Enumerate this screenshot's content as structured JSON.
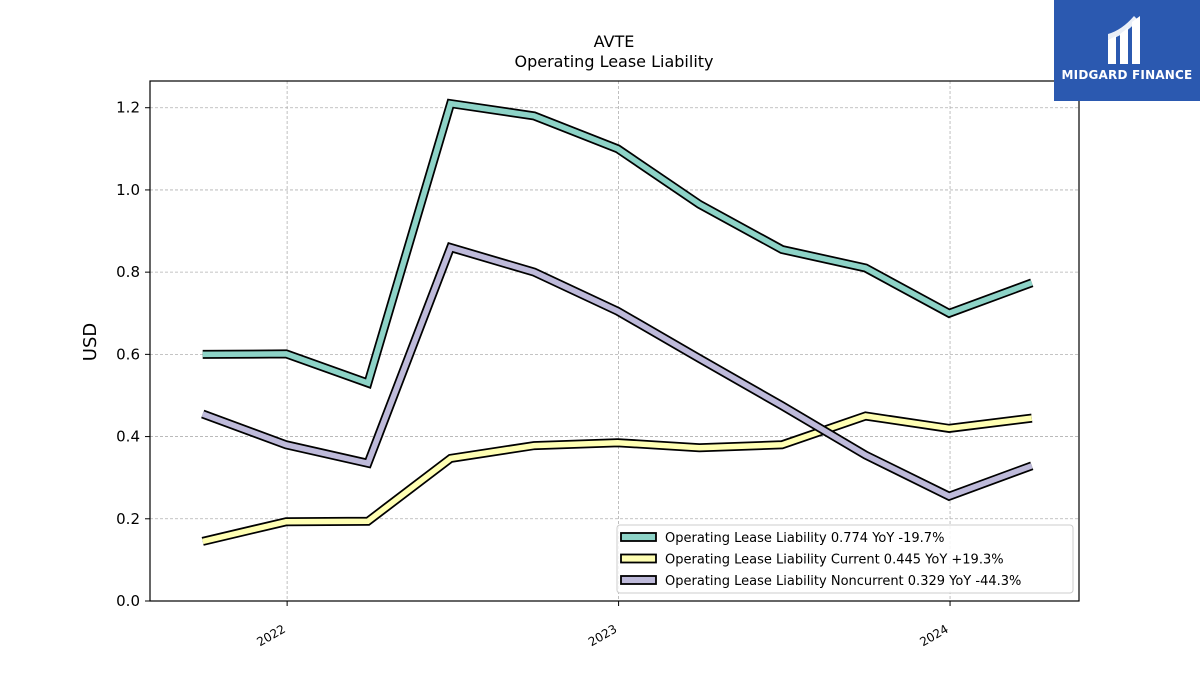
{
  "chart_data": {
    "type": "line",
    "title": "AVTE",
    "subtitle": "Operating Lease Liability",
    "ylabel": "USD",
    "xlabel": "",
    "ylim": [
      0,
      1.265
    ],
    "yticks": [
      "0.0",
      "0.2",
      "0.4",
      "0.6",
      "0.8",
      "1.0",
      "1.2"
    ],
    "xticks": [
      {
        "label": "2022",
        "date": "2022-01-01"
      },
      {
        "label": "2023",
        "date": "2023-01-01"
      },
      {
        "label": "2024",
        "date": "2024-01-01"
      }
    ],
    "xlim": [
      "2021-08-03",
      "2024-05-22"
    ],
    "x": [
      "2021-09-30",
      "2021-12-31",
      "2022-03-31",
      "2022-06-30",
      "2022-09-30",
      "2022-12-31",
      "2023-03-31",
      "2023-06-30",
      "2023-09-30",
      "2023-12-31",
      "2024-03-31"
    ],
    "grid": true,
    "legend_position": "lower-right",
    "series": [
      {
        "name": "Operating Lease Liability",
        "legend_value": "0.774 YoY -19.7%",
        "color": "#8dd3c7",
        "values": [
          0.6,
          0.601,
          0.53,
          1.21,
          1.18,
          1.1,
          0.965,
          0.855,
          0.81,
          0.7,
          0.774
        ]
      },
      {
        "name": "Operating Lease Liability Current",
        "legend_value": "0.445 YoY +19.3%",
        "color": "#ffffb3",
        "values": [
          0.145,
          0.193,
          0.194,
          0.347,
          0.378,
          0.385,
          0.373,
          0.38,
          0.45,
          0.42,
          0.445
        ]
      },
      {
        "name": "Operating Lease Liability Noncurrent",
        "legend_value": "0.329 YoY -44.3%",
        "color": "#bebada",
        "values": [
          0.455,
          0.38,
          0.335,
          0.86,
          0.8,
          0.705,
          0.59,
          0.475,
          0.355,
          0.255,
          0.329
        ]
      }
    ]
  },
  "logo": {
    "text": "MIDGARD FINANCE",
    "color": "#2b59b0"
  }
}
